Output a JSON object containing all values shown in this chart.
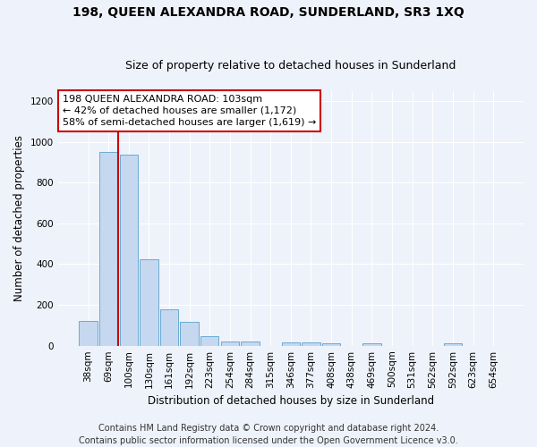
{
  "title": "198, QUEEN ALEXANDRA ROAD, SUNDERLAND, SR3 1XQ",
  "subtitle": "Size of property relative to detached houses in Sunderland",
  "xlabel": "Distribution of detached houses by size in Sunderland",
  "ylabel": "Number of detached properties",
  "categories": [
    "38sqm",
    "69sqm",
    "100sqm",
    "130sqm",
    "161sqm",
    "192sqm",
    "223sqm",
    "254sqm",
    "284sqm",
    "315sqm",
    "346sqm",
    "377sqm",
    "408sqm",
    "438sqm",
    "469sqm",
    "500sqm",
    "531sqm",
    "562sqm",
    "592sqm",
    "623sqm",
    "654sqm"
  ],
  "values": [
    120,
    950,
    935,
    425,
    180,
    115,
    45,
    20,
    20,
    0,
    18,
    18,
    10,
    0,
    10,
    0,
    0,
    0,
    10,
    0,
    0
  ],
  "bar_color": "#c5d8f0",
  "bar_edge_color": "#6aabd2",
  "vline_color": "#cc0000",
  "vline_x": 1.5,
  "ylim": [
    0,
    1250
  ],
  "yticks": [
    0,
    200,
    400,
    600,
    800,
    1000,
    1200
  ],
  "annotation_lines": [
    "198 QUEEN ALEXANDRA ROAD: 103sqm",
    "← 42% of detached houses are smaller (1,172)",
    "58% of semi-detached houses are larger (1,619) →"
  ],
  "annotation_box_facecolor": "#ffffff",
  "annotation_box_edgecolor": "#cc0000",
  "footer_line1": "Contains HM Land Registry data © Crown copyright and database right 2024.",
  "footer_line2": "Contains public sector information licensed under the Open Government Licence v3.0.",
  "background_color": "#eef2fa",
  "grid_color": "#ffffff",
  "title_fontsize": 10,
  "subtitle_fontsize": 9,
  "axis_label_fontsize": 8.5,
  "tick_fontsize": 7.5,
  "annotation_fontsize": 8,
  "footer_fontsize": 7
}
